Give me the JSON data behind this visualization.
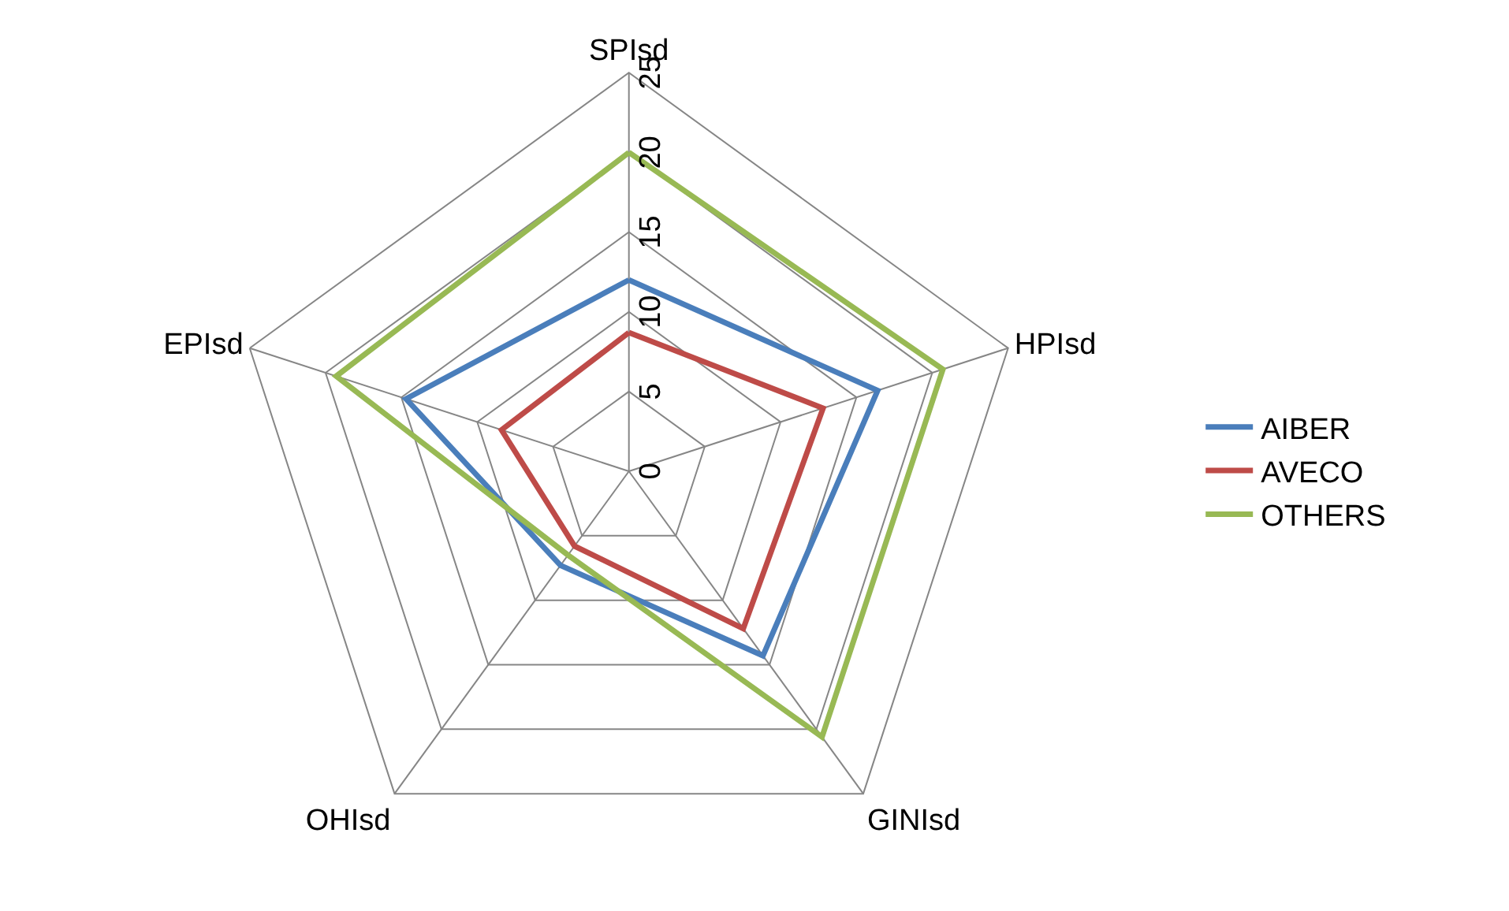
{
  "chart_data": {
    "type": "radar",
    "categories": [
      "SPIsd",
      "HPIsd",
      "GINIsd",
      "OHIsd",
      "EPIsd"
    ],
    "ylim": [
      0,
      25
    ],
    "yticks": [
      0,
      5,
      10,
      15,
      20,
      25
    ],
    "grid": true,
    "legend": "right",
    "marker": "none",
    "series": [
      {
        "name": "AIBER",
        "color": "#4a7ebb",
        "values": [
          12,
          16.4,
          14.3,
          7.3,
          14.7
        ]
      },
      {
        "name": "AVECO",
        "color": "#be4b48",
        "values": [
          8.7,
          12.8,
          12.2,
          5.8,
          8.4
        ]
      },
      {
        "name": "OTHERS",
        "color": "#98b954",
        "values": [
          20,
          20.7,
          20.6,
          6.5,
          19.3
        ]
      }
    ]
  }
}
